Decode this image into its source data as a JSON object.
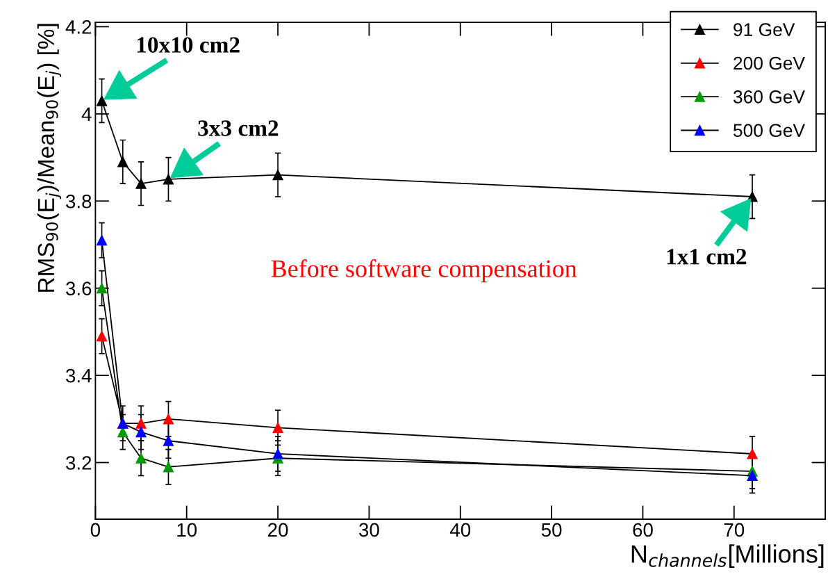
{
  "chart_data": {
    "type": "line",
    "xlabel": "N$_{channels}$[Millions]",
    "ylabel": "RMS$_{90}$(E$_{j}$)/Mean$_{90}$(E$_{j}$) [%]",
    "x": [
      0.7,
      3,
      5,
      8,
      20,
      72
    ],
    "series": [
      {
        "name": "91 GeV",
        "color": "#000000",
        "values": [
          4.03,
          3.89,
          3.84,
          3.85,
          3.86,
          3.81
        ],
        "errors": [
          0.05,
          0.05,
          0.05,
          0.05,
          0.05,
          0.05
        ]
      },
      {
        "name": "200 GeV",
        "color": "#ff0000",
        "values": [
          3.49,
          3.29,
          3.29,
          3.3,
          3.28,
          3.22
        ],
        "errors": [
          0.04,
          0.04,
          0.04,
          0.04,
          0.04,
          0.04
        ]
      },
      {
        "name": "360 GeV",
        "color": "#009900",
        "values": [
          3.6,
          3.27,
          3.21,
          3.19,
          3.21,
          3.18
        ],
        "errors": [
          0.04,
          0.04,
          0.04,
          0.04,
          0.04,
          0.04
        ]
      },
      {
        "name": "500 GeV",
        "color": "#0000ff",
        "values": [
          3.71,
          3.29,
          3.27,
          3.25,
          3.22,
          3.17
        ],
        "errors": [
          0.04,
          0.04,
          0.04,
          0.04,
          0.04,
          0.04
        ]
      }
    ],
    "annotations": [
      {
        "text": "10x10 cm2",
        "x": 0.7,
        "y": 4.03
      },
      {
        "text": "3x3 cm2",
        "x": 8,
        "y": 3.85
      },
      {
        "text": "1x1 cm2",
        "x": 72,
        "y": 3.81
      },
      "Before software compensation"
    ],
    "xlim": [
      0,
      80
    ],
    "ylim": [
      3.07,
      4.21
    ],
    "xticks": [
      0,
      10,
      20,
      30,
      40,
      50,
      60,
      70
    ],
    "yticks": [
      3.2,
      3.4,
      3.6,
      3.8,
      4,
      4.2
    ],
    "grid": false,
    "legend": "top right",
    "marker": "triangle",
    "line_style": "solid"
  }
}
